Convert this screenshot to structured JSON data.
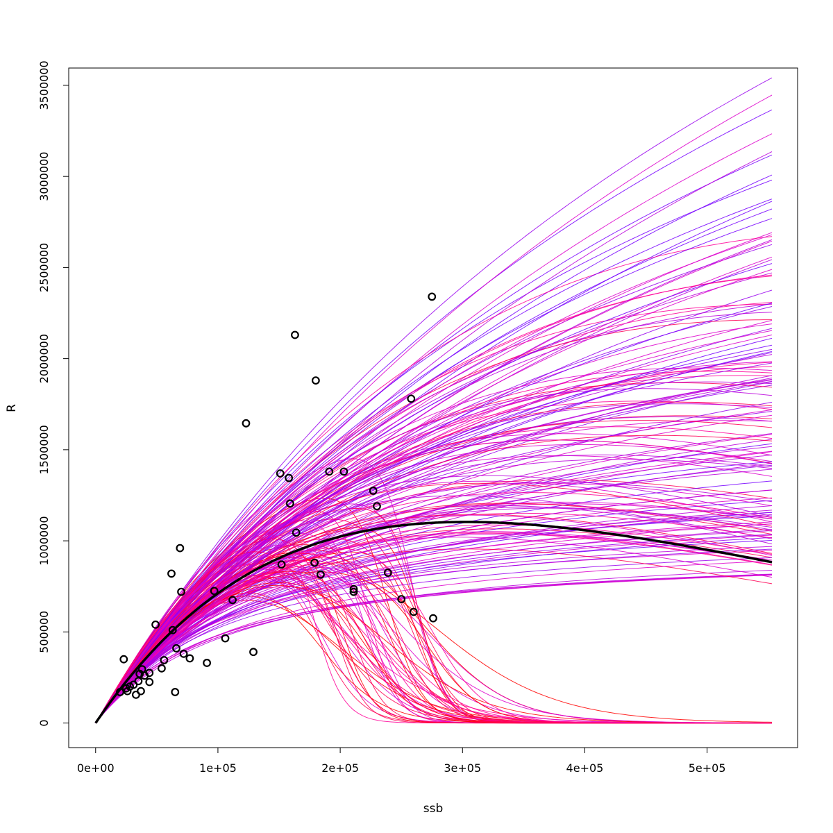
{
  "chart_data": {
    "type": "scatter",
    "title": "",
    "xlabel": "ssb",
    "ylabel": "R",
    "xlim": [
      -22000,
      574000
    ],
    "ylim": [
      -135000,
      3595000
    ],
    "x_ticks": [
      0,
      100000,
      200000,
      300000,
      400000,
      500000
    ],
    "x_tick_labels": [
      "0e+00",
      "1e+05",
      "2e+05",
      "3e+05",
      "4e+05",
      "5e+05"
    ],
    "y_ticks": [
      0,
      500000,
      1000000,
      1500000,
      2000000,
      2500000,
      3000000,
      3500000
    ],
    "y_tick_labels": [
      "0",
      "500000",
      "1000000",
      "1500000",
      "2000000",
      "2500000",
      "3000000",
      "3500000"
    ],
    "grid": false,
    "legend": "none",
    "curve_x_max": 553000,
    "observations": {
      "x": [
        20000,
        23000,
        25000,
        26000,
        28000,
        31000,
        33000,
        35000,
        36000,
        37000,
        38000,
        40000,
        44000,
        44000,
        49000,
        54000,
        56000,
        62000,
        63000,
        65000,
        66000,
        69000,
        70000,
        72000,
        77000,
        91000,
        97000,
        106000,
        112000,
        123000,
        129000,
        151000,
        152000,
        158000,
        159000,
        163000,
        164000,
        179000,
        180000,
        184000,
        191000,
        203000,
        211000,
        211000,
        227000,
        230000,
        239000,
        250000,
        258000,
        260000,
        275000,
        276000
      ],
      "y": [
        170000,
        350000,
        190000,
        175000,
        200000,
        210000,
        155000,
        230000,
        270000,
        175000,
        295000,
        260000,
        225000,
        275000,
        540000,
        300000,
        345000,
        820000,
        510000,
        170000,
        410000,
        960000,
        720000,
        380000,
        355000,
        330000,
        725000,
        465000,
        675000,
        1645000,
        390000,
        1370000,
        870000,
        1345000,
        1205000,
        2130000,
        1045000,
        880000,
        1880000,
        815000,
        1380000,
        1380000,
        735000,
        720000,
        1275000,
        1190000,
        825000,
        680000,
        1780000,
        610000,
        2340000,
        575000
      ]
    },
    "fitted_curve": {
      "model": "Ricker",
      "parameters": {
        "a": 9.9,
        "b": 3.3e-06
      },
      "color": "#000000"
    },
    "bootstrap_fits": {
      "count": 200,
      "colors": [
        "#ff0000",
        "#ff0055",
        "#ff0099",
        "#dd00cc",
        "#bb00dd",
        "#9900ee",
        "#7700ff"
      ]
    },
    "colors": {
      "observations": "#000000",
      "axes": "#000000",
      "background": "#ffffff"
    }
  }
}
